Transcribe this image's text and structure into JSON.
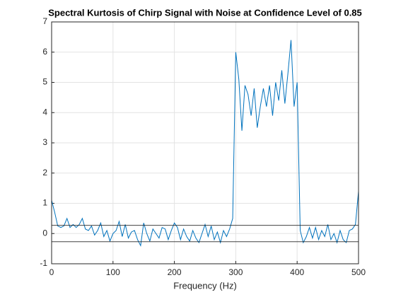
{
  "chart_data": {
    "type": "line",
    "title": "Spectral Kurtosis of Chirp Signal with Noise at Confidence Level of 0.85",
    "x_label": "Frequency (Hz)",
    "x": [
      0,
      5,
      10,
      15,
      20,
      25,
      30,
      35,
      40,
      45,
      50,
      55,
      60,
      65,
      70,
      75,
      80,
      85,
      90,
      95,
      100,
      105,
      110,
      115,
      120,
      125,
      130,
      135,
      140,
      145,
      150,
      155,
      160,
      165,
      170,
      175,
      180,
      185,
      190,
      195,
      200,
      205,
      210,
      215,
      220,
      225,
      230,
      235,
      240,
      245,
      250,
      255,
      260,
      265,
      270,
      275,
      280,
      285,
      290,
      295,
      300,
      305,
      310,
      315,
      320,
      325,
      330,
      335,
      340,
      345,
      350,
      355,
      360,
      365,
      370,
      375,
      380,
      385,
      390,
      395,
      400,
      405,
      410,
      415,
      420,
      425,
      430,
      435,
      440,
      445,
      450,
      455,
      460,
      465,
      470,
      475,
      480,
      485,
      490,
      495,
      500
    ],
    "series": [
      {
        "color": "#0072bd",
        "values": [
          1.1,
          0.7,
          0.25,
          0.2,
          0.25,
          0.5,
          0.2,
          0.3,
          0.2,
          0.3,
          0.5,
          0.15,
          0.1,
          0.25,
          -0.05,
          0.1,
          0.35,
          -0.1,
          0.1,
          -0.25,
          0.0,
          0.1,
          0.4,
          -0.1,
          0.3,
          -0.15,
          0.05,
          0.1,
          -0.2,
          -0.4,
          0.35,
          0.0,
          -0.25,
          0.15,
          0.0,
          -0.15,
          0.2,
          0.15,
          -0.2,
          0.1,
          0.35,
          0.2,
          -0.2,
          0.15,
          -0.1,
          -0.25,
          0.1,
          -0.15,
          -0.3,
          0.0,
          0.3,
          -0.1,
          0.25,
          -0.2,
          0.05,
          -0.3,
          0.1,
          -0.1,
          0.15,
          0.5,
          6.0,
          5.1,
          3.4,
          4.9,
          4.6,
          3.9,
          4.8,
          3.5,
          4.2,
          4.8,
          4.2,
          4.9,
          3.9,
          5.0,
          4.4,
          5.4,
          4.3,
          5.3,
          6.4,
          4.2,
          5.0,
          0.1,
          -0.3,
          -0.1,
          0.2,
          -0.15,
          0.2,
          -0.2,
          0.1,
          -0.1,
          0.3,
          -0.2,
          0.0,
          -0.3,
          0.1,
          -0.2,
          -0.3,
          0.1,
          0.15,
          0.3,
          1.4
        ]
      }
    ],
    "hlines": [
      0.27,
      -0.27
    ],
    "hline_color": "#262626",
    "xlim": [
      0,
      500
    ],
    "xticks": [
      0,
      100,
      200,
      300,
      400,
      500
    ],
    "ylim": [
      -1,
      7
    ],
    "yticks": [
      -1,
      0,
      1,
      2,
      3,
      4,
      5,
      6,
      7
    ],
    "grid": true
  }
}
